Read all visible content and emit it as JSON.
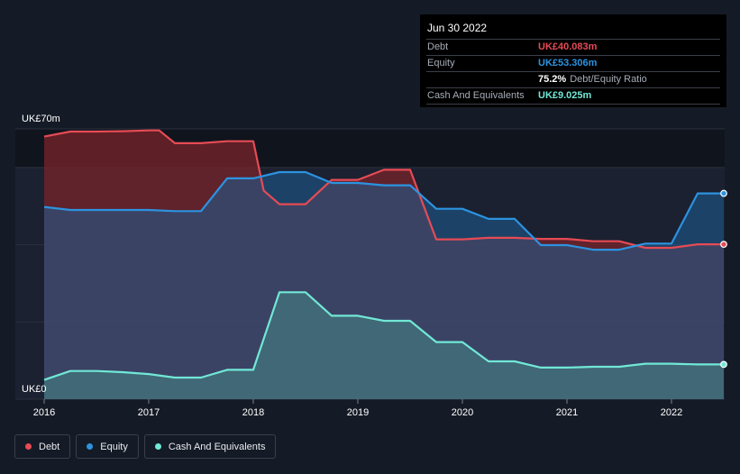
{
  "tooltip": {
    "date": "Jun 30 2022",
    "rows": [
      {
        "label": "Debt",
        "value": "UK£40.083m",
        "color": "#e64b55"
      },
      {
        "label": "Equity",
        "value": "UK£53.306m",
        "color": "#2c93e0"
      },
      {
        "label": "",
        "value": "75.2%",
        "suffix": "Debt/Equity Ratio",
        "color": "#ffffff"
      },
      {
        "label": "Cash And Equivalents",
        "value": "UK£9.025m",
        "color": "#71e8d6"
      }
    ]
  },
  "legend": [
    {
      "label": "Debt",
      "color": "#e64b55"
    },
    {
      "label": "Equity",
      "color": "#2c93e0"
    },
    {
      "label": "Cash And Equivalents",
      "color": "#71e8d6"
    }
  ],
  "chart_data": {
    "type": "area",
    "title": "",
    "xlabel": "",
    "ylabel": "",
    "y_tick_labels": [
      "UK£0",
      "UK£70m"
    ],
    "ylim": [
      0,
      70
    ],
    "xlim": [
      2016.0,
      2022.5
    ],
    "x_ticks": [
      2016,
      2017,
      2018,
      2019,
      2020,
      2021,
      2022
    ],
    "x_tick_labels": [
      "2016",
      "2017",
      "2018",
      "2019",
      "2020",
      "2021",
      "2022"
    ],
    "series": [
      {
        "name": "Debt",
        "color": "#e64b55",
        "points": [
          [
            2016.0,
            68.0
          ],
          [
            2016.25,
            69.3
          ],
          [
            2016.5,
            69.3
          ],
          [
            2016.75,
            69.4
          ],
          [
            2017.0,
            69.6
          ],
          [
            2017.1,
            69.6
          ],
          [
            2017.25,
            66.3
          ],
          [
            2017.5,
            66.3
          ],
          [
            2017.75,
            66.8
          ],
          [
            2018.0,
            66.8
          ],
          [
            2018.1,
            54.0
          ],
          [
            2018.25,
            50.5
          ],
          [
            2018.5,
            50.5
          ],
          [
            2018.75,
            56.8
          ],
          [
            2019.0,
            56.8
          ],
          [
            2019.25,
            59.4
          ],
          [
            2019.5,
            59.4
          ],
          [
            2019.75,
            41.4
          ],
          [
            2020.0,
            41.4
          ],
          [
            2020.25,
            41.8
          ],
          [
            2020.5,
            41.8
          ],
          [
            2020.75,
            41.5
          ],
          [
            2021.0,
            41.5
          ],
          [
            2021.25,
            40.9
          ],
          [
            2021.5,
            40.9
          ],
          [
            2021.75,
            39.2
          ],
          [
            2022.0,
            39.2
          ],
          [
            2022.25,
            40.1
          ],
          [
            2022.5,
            40.1
          ]
        ]
      },
      {
        "name": "Equity",
        "color": "#2c93e0",
        "points": [
          [
            2016.0,
            49.8
          ],
          [
            2016.25,
            49.0
          ],
          [
            2016.5,
            49.0
          ],
          [
            2016.75,
            49.0
          ],
          [
            2017.0,
            49.0
          ],
          [
            2017.25,
            48.7
          ],
          [
            2017.5,
            48.7
          ],
          [
            2017.75,
            57.2
          ],
          [
            2018.0,
            57.2
          ],
          [
            2018.25,
            58.8
          ],
          [
            2018.5,
            58.8
          ],
          [
            2018.75,
            56.0
          ],
          [
            2019.0,
            56.0
          ],
          [
            2019.25,
            55.4
          ],
          [
            2019.5,
            55.4
          ],
          [
            2019.75,
            49.3
          ],
          [
            2020.0,
            49.3
          ],
          [
            2020.25,
            46.7
          ],
          [
            2020.5,
            46.7
          ],
          [
            2020.75,
            39.9
          ],
          [
            2021.0,
            39.9
          ],
          [
            2021.25,
            38.7
          ],
          [
            2021.5,
            38.7
          ],
          [
            2021.75,
            40.3
          ],
          [
            2022.0,
            40.3
          ],
          [
            2022.25,
            53.3
          ],
          [
            2022.5,
            53.3
          ]
        ]
      },
      {
        "name": "Cash And Equivalents",
        "color": "#71e8d6",
        "points": [
          [
            2016.0,
            5.0
          ],
          [
            2016.25,
            7.3
          ],
          [
            2016.5,
            7.3
          ],
          [
            2016.75,
            7.0
          ],
          [
            2017.0,
            6.5
          ],
          [
            2017.25,
            5.6
          ],
          [
            2017.5,
            5.6
          ],
          [
            2017.75,
            7.6
          ],
          [
            2018.0,
            7.6
          ],
          [
            2018.25,
            27.7
          ],
          [
            2018.5,
            27.7
          ],
          [
            2018.75,
            21.6
          ],
          [
            2019.0,
            21.6
          ],
          [
            2019.25,
            20.3
          ],
          [
            2019.5,
            20.3
          ],
          [
            2019.75,
            14.8
          ],
          [
            2020.0,
            14.8
          ],
          [
            2020.25,
            9.8
          ],
          [
            2020.5,
            9.8
          ],
          [
            2020.75,
            8.2
          ],
          [
            2021.0,
            8.2
          ],
          [
            2021.25,
            8.4
          ],
          [
            2021.5,
            8.4
          ],
          [
            2021.75,
            9.2
          ],
          [
            2022.0,
            9.2
          ],
          [
            2022.25,
            9.0
          ],
          [
            2022.5,
            9.0
          ]
        ]
      }
    ]
  }
}
